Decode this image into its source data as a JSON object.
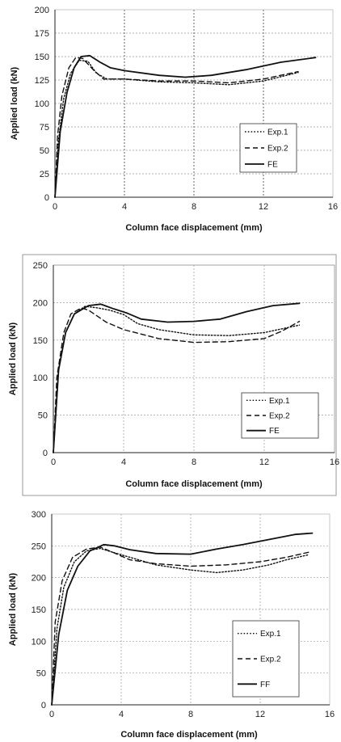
{
  "chart_data": [
    {
      "type": "line",
      "xlabel": "Column face displacement (mm)",
      "ylabel": "Applied load (kN)",
      "xlim": [
        0,
        16
      ],
      "ylim": [
        0,
        200
      ],
      "xticks": [
        "0",
        "4",
        "8",
        "12",
        "16"
      ],
      "yticks": [
        "0",
        "25",
        "50",
        "75",
        "100",
        "125",
        "150",
        "175",
        "200"
      ],
      "grid": "dashed",
      "legend_position": "lower-right",
      "series": [
        {
          "name": "Exp.1",
          "style": "dotted",
          "x": [
            0,
            0.2,
            0.5,
            0.9,
            1.4,
            1.9,
            2.4,
            3.0,
            4.0,
            6.0,
            8.0,
            10.0,
            12.0,
            14.0
          ],
          "y": [
            0,
            60,
            105,
            132,
            146,
            145,
            132,
            126,
            126,
            123,
            122,
            120,
            124,
            133
          ]
        },
        {
          "name": "Exp.2",
          "style": "dashed",
          "x": [
            0,
            0.15,
            0.4,
            0.8,
            1.2,
            1.6,
            2.2,
            2.8,
            4.0,
            6.0,
            8.0,
            10.0,
            12.0,
            14.0
          ],
          "y": [
            0,
            65,
            108,
            138,
            149,
            148,
            136,
            126,
            126,
            124,
            124,
            122,
            126,
            134
          ]
        },
        {
          "name": "FE",
          "style": "solid",
          "x": [
            0,
            0.3,
            0.7,
            1.1,
            1.5,
            2.0,
            2.6,
            3.2,
            4.0,
            6.0,
            7.5,
            9.0,
            11.0,
            13.0,
            15.0
          ],
          "y": [
            0,
            70,
            112,
            138,
            150,
            151,
            144,
            138,
            135,
            130,
            128,
            130,
            136,
            144,
            149
          ]
        }
      ]
    },
    {
      "type": "line",
      "xlabel": "Column face displacement (mm)",
      "ylabel": "Applied load (kN)",
      "xlim": [
        0,
        16
      ],
      "ylim": [
        0,
        250
      ],
      "xticks": [
        "0",
        "4",
        "8",
        "12",
        "16"
      ],
      "yticks": [
        "0",
        "50",
        "100",
        "150",
        "200",
        "250"
      ],
      "grid": "dashed",
      "legend_position": "lower-right",
      "series": [
        {
          "name": "Exp.1",
          "style": "dotted",
          "x": [
            0,
            0.3,
            0.7,
            1.2,
            1.8,
            2.5,
            3.2,
            4.0,
            4.8,
            6.0,
            8.0,
            10.0,
            12.0,
            14.0
          ],
          "y": [
            0,
            110,
            160,
            185,
            195,
            193,
            190,
            184,
            172,
            164,
            157,
            156,
            160,
            170
          ]
        },
        {
          "name": "Exp.2",
          "style": "dashed",
          "x": [
            0,
            0.2,
            0.6,
            1.0,
            1.6,
            2.0,
            3.0,
            4.0,
            6.0,
            8.0,
            10.0,
            12.0,
            13.0,
            14.0
          ],
          "y": [
            0,
            100,
            160,
            185,
            193,
            190,
            174,
            164,
            152,
            147,
            148,
            152,
            162,
            175
          ]
        },
        {
          "name": "FE",
          "style": "solid",
          "x": [
            0,
            0.3,
            0.7,
            1.2,
            2.0,
            2.7,
            3.4,
            4.2,
            5.0,
            6.5,
            8.0,
            9.5,
            11.0,
            12.5,
            14.0
          ],
          "y": [
            0,
            110,
            160,
            185,
            196,
            198,
            192,
            186,
            178,
            174,
            175,
            178,
            188,
            196,
            199
          ]
        }
      ]
    },
    {
      "type": "line",
      "xlabel": "Column face displacement (mm)",
      "ylabel": "Applied load (kN)",
      "xlim": [
        0,
        16
      ],
      "ylim": [
        0,
        300
      ],
      "xticks": [
        "0",
        "4",
        "8",
        "12",
        "16"
      ],
      "yticks": [
        "0",
        "50",
        "100",
        "150",
        "200",
        "250",
        "300"
      ],
      "grid": "dashed",
      "legend_position": "lower-right",
      "series": [
        {
          "name": "Exp.1",
          "style": "dotted",
          "x": [
            0,
            0.3,
            0.7,
            1.3,
            2.0,
            2.8,
            3.5,
            4.5,
            6.0,
            8.0,
            9.5,
            11.0,
            12.5,
            13.5,
            14.8
          ],
          "y": [
            0,
            120,
            185,
            225,
            242,
            246,
            240,
            232,
            220,
            212,
            208,
            212,
            220,
            228,
            236
          ]
        },
        {
          "name": "Exp.2",
          "style": "dashed",
          "x": [
            0,
            0.2,
            0.6,
            1.2,
            2.0,
            2.8,
            3.5,
            4.5,
            6.0,
            8.0,
            10.0,
            12.0,
            13.5,
            14.8
          ],
          "y": [
            0,
            130,
            195,
            232,
            245,
            248,
            240,
            228,
            222,
            218,
            220,
            225,
            232,
            240
          ]
        },
        {
          "name": "FF",
          "style": "solid",
          "x": [
            0,
            0.4,
            0.9,
            1.5,
            2.2,
            3.0,
            3.6,
            4.5,
            6.0,
            8.0,
            9.5,
            11.0,
            12.5,
            14.0,
            15.0
          ],
          "y": [
            0,
            110,
            180,
            218,
            242,
            252,
            250,
            244,
            238,
            237,
            245,
            252,
            260,
            268,
            270
          ]
        }
      ]
    }
  ]
}
